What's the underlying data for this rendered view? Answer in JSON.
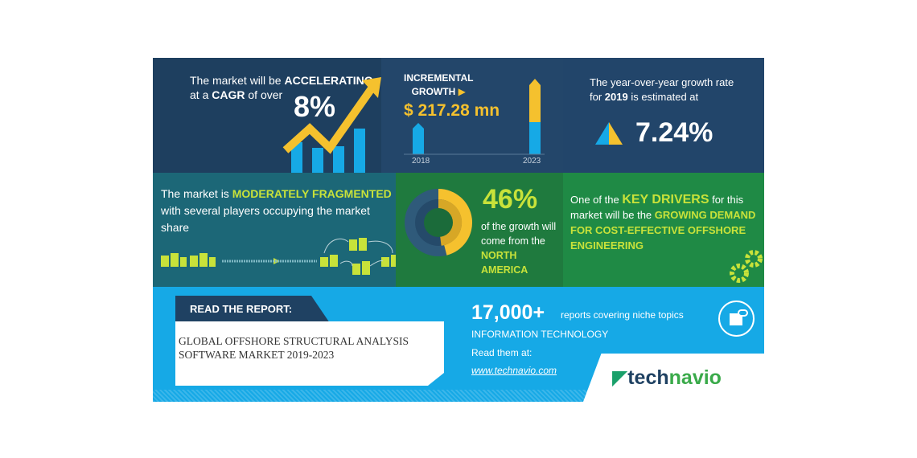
{
  "cagr": {
    "line1_pre": "The market will be ",
    "line1_bold": "ACCELERATING",
    "line2_pre": "at a ",
    "line2_bold": "CAGR",
    "line2_post": " of over",
    "value": "8%"
  },
  "incremental": {
    "label1": "INCREMENTAL",
    "label2": "GROWTH",
    "value": "$ 217.28 mn",
    "year_start": "2018",
    "year_end": "2023"
  },
  "yoy": {
    "line1": "The year-over-year growth rate",
    "line2_pre": "for ",
    "line2_bold": "2019",
    "line2_post": " is estimated at",
    "value": "7.24%"
  },
  "fragmented": {
    "pre": "The market is ",
    "bold": "MODERATELY FRAGMENTED",
    "rest": "with several players occupying the market share"
  },
  "region": {
    "value": "46%",
    "line1": "of the growth will",
    "line2": "come from the",
    "region": "NORTH AMERICA",
    "share_percent": 46
  },
  "drivers": {
    "pre": "One of the ",
    "bold": "KEY DRIVERS",
    "mid": " for this market will be the ",
    "driver": "GROWING DEMAND FOR COST-EFFECTIVE OFFSHORE ENGINEERING"
  },
  "report": {
    "tag": "READ THE REPORT:",
    "title_line1": "GLOBAL OFFSHORE STRUCTURAL ANALYSIS",
    "title_line2": "SOFTWARE MARKET 2019-2023"
  },
  "promo": {
    "count": "17,000+",
    "count_text": "reports covering niche topics",
    "category": "INFORMATION TECHNOLOGY",
    "read": "Read them at:",
    "url": "www.technavio.com"
  },
  "logo": {
    "part1": "tech",
    "part2": "navio"
  },
  "colors": {
    "navy": "#1f4162",
    "teal": "#1c6777",
    "green": "#1f8a45",
    "yellow": "#f5c12e",
    "lime": "#c8e23a",
    "blue": "#16a9e6"
  }
}
